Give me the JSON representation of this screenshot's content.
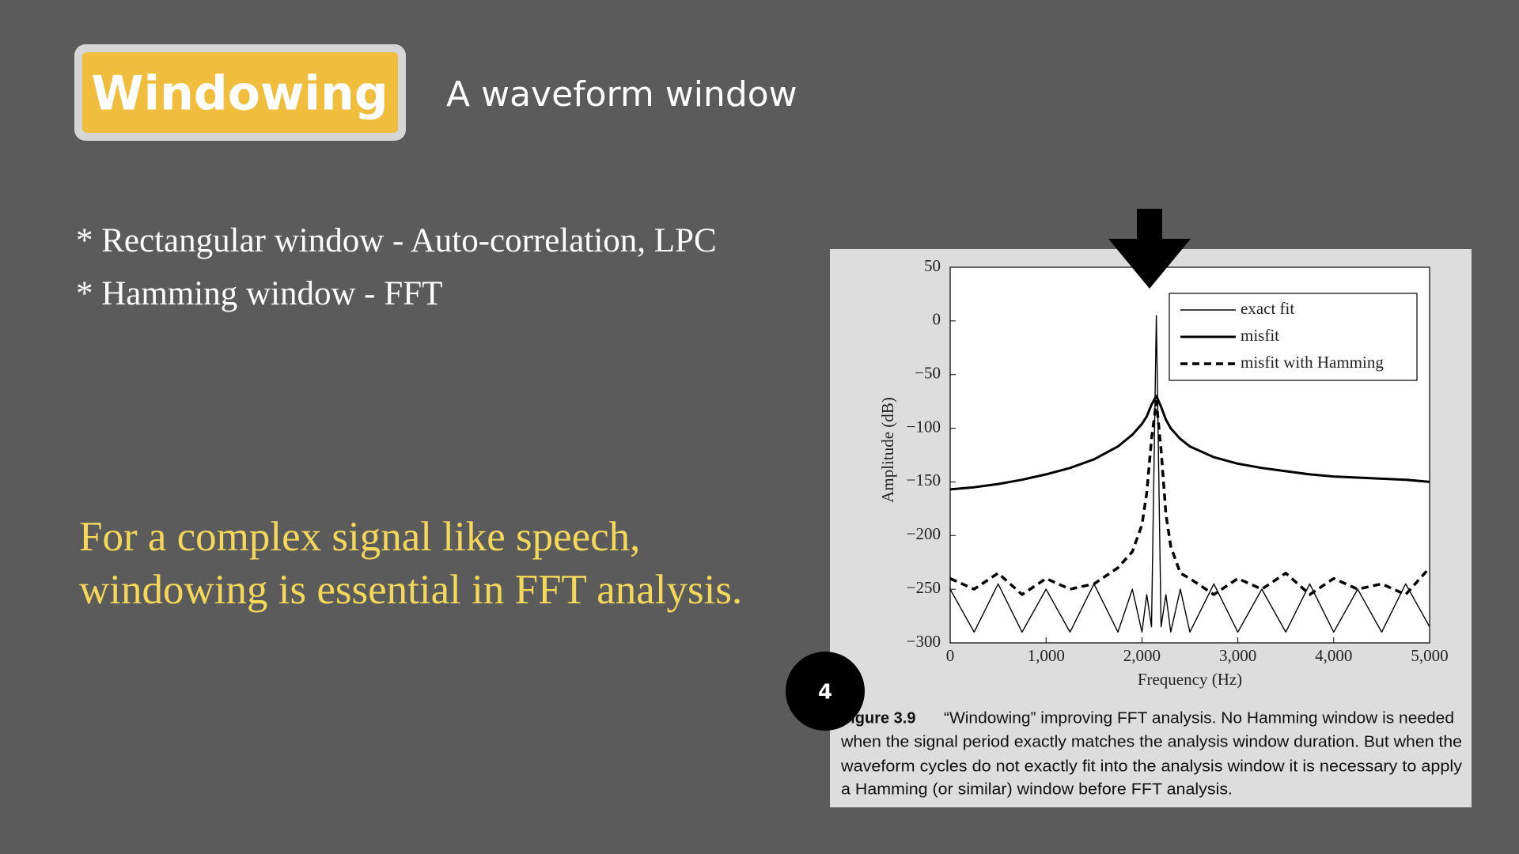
{
  "header": {
    "badge": "Windowing",
    "subtitle": "A waveform window"
  },
  "bullets": [
    "* Rectangular window - Auto-correlation, LPC",
    "* Hamming window - FFT"
  ],
  "highlight": [
    "For a complex signal like speech,",
    "windowing is essential in FFT analysis."
  ],
  "page_badge": "4",
  "caption": {
    "label": "Figure 3.9",
    "lines": [
      "“Windowing” improving FFT analysis. No Hamming window is needed",
      "when the signal period exactly matches the analysis window duration. But when the",
      "waveform cycles do not exactly fit into the analysis window it is necessary to apply",
      "a Hamming (or similar) window before FFT analysis."
    ]
  },
  "chart_data": {
    "type": "line",
    "x_label": "Frequency (Hz)",
    "y_label": "Amplitude (dB)",
    "x": [
      0,
      250,
      500,
      750,
      1000,
      1250,
      1500,
      1750,
      1900,
      2000,
      2050,
      2100,
      2150,
      2200,
      2250,
      2300,
      2400,
      2500,
      2750,
      3000,
      3250,
      3500,
      3750,
      4000,
      4250,
      4500,
      4750,
      5000
    ],
    "series": [
      {
        "name": "exact fit",
        "color": "#000000",
        "style": "thin",
        "values": [
          -250,
          -290,
          -245,
          -290,
          -250,
          -290,
          -245,
          -290,
          -250,
          -290,
          -255,
          -285,
          5,
          -285,
          -255,
          -290,
          -250,
          -290,
          -245,
          -290,
          -250,
          -290,
          -245,
          -290,
          -250,
          -290,
          -245,
          -285
        ]
      },
      {
        "name": "misfit",
        "color": "#000000",
        "style": "thick",
        "values": [
          -157,
          -155,
          -152,
          -148,
          -143,
          -137,
          -129,
          -117,
          -106,
          -96,
          -89,
          -78,
          -70,
          -80,
          -92,
          -100,
          -110,
          -117,
          -127,
          -133,
          -137,
          -140,
          -143,
          -145,
          -146,
          -147,
          -148,
          -150
        ]
      },
      {
        "name": "misfit with Hamming",
        "color": "#000000",
        "style": "dashed",
        "values": [
          -240,
          -250,
          -235,
          -255,
          -240,
          -250,
          -245,
          -230,
          -215,
          -190,
          -160,
          -110,
          -75,
          -120,
          -180,
          -210,
          -235,
          -240,
          -255,
          -240,
          -250,
          -235,
          -255,
          -240,
          -250,
          -245,
          -255,
          -230
        ]
      }
    ],
    "xlim": [
      0,
      5000
    ],
    "ylim": [
      -300,
      50
    ],
    "xticks": [
      0,
      {
        "value": 1000,
        "label": "1,000"
      },
      {
        "value": 2000,
        "label": "2,000"
      },
      {
        "value": 3000,
        "label": "3,000"
      },
      {
        "value": 4000,
        "label": "4,000"
      },
      {
        "value": 5000,
        "label": "5,000"
      }
    ],
    "yticks": [
      50,
      0,
      {
        "value": -50,
        "label": "−50"
      },
      {
        "value": -100,
        "label": "−100"
      },
      {
        "value": -150,
        "label": "−150"
      },
      {
        "value": -200,
        "label": "−200"
      },
      {
        "value": -250,
        "label": "−250"
      },
      {
        "value": -300,
        "label": "−300"
      }
    ],
    "legend": "upper right"
  }
}
